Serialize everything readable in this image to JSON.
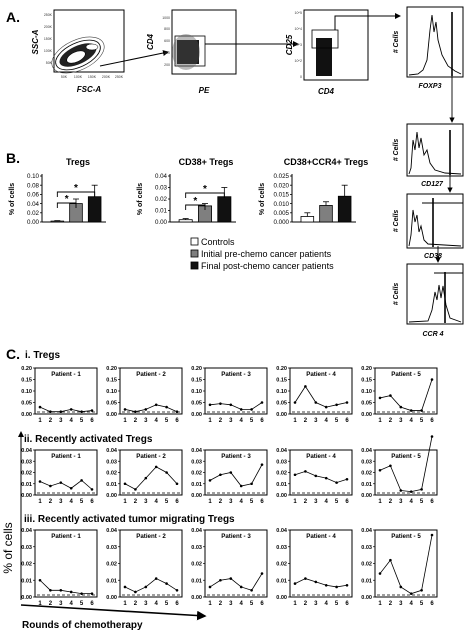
{
  "panel_letters": {
    "a": "A.",
    "b": "B.",
    "c": "C."
  },
  "flow": {
    "plot1": {
      "ylabel": "SSC-A",
      "xlabel": "FSC-A",
      "ticks": [
        "50K",
        "100K",
        "150K",
        "200K",
        "250K"
      ]
    },
    "plot2": {
      "ylabel": "CD4",
      "xlabel": "PE",
      "ticks": [
        "1000",
        "800",
        "600",
        "400",
        "200"
      ]
    },
    "plot3": {
      "ylabel": "CD25",
      "xlabel": "CD4",
      "ticks": [
        "10^5",
        "10^4",
        "10^3",
        "10^2",
        "0"
      ]
    },
    "hist": [
      {
        "ylabel": "# Cells",
        "xlabel": "FOXP3"
      },
      {
        "ylabel": "# Cells",
        "xlabel": "CD127"
      },
      {
        "ylabel": "# Cells",
        "xlabel": "CD38"
      },
      {
        "ylabel": "# Cells",
        "xlabel": "CCR 4"
      }
    ]
  },
  "legend": [
    {
      "label": "Controls",
      "color": "#ffffff"
    },
    {
      "label": "Initial pre-chemo cancer patients",
      "color": "#7f7f7f"
    },
    {
      "label": "Final post-chemo cancer patients",
      "color": "#111111"
    }
  ],
  "section_c": {
    "rows": [
      {
        "title": "i. Tregs"
      },
      {
        "title": "ii. Recently activated Tregs"
      },
      {
        "title": "iii. Recently activated tumor migrating Tregs"
      }
    ],
    "ylabel": "% of cells",
    "xlabel": "Rounds of chemotherapy"
  },
  "chart_data": [
    {
      "type": "bar",
      "title": "Tregs",
      "ylabel": "% of cells",
      "categories": [
        "Controls",
        "Initial pre-chemo cancer patients",
        "Final post-chemo cancer patients"
      ],
      "values": [
        0.002,
        0.04,
        0.055
      ],
      "errors": [
        0.001,
        0.01,
        0.025
      ],
      "ylim": [
        0,
        0.1
      ],
      "yticks": [
        "0.00",
        "0.02",
        "0.04",
        "0.06",
        "0.08",
        "0.10"
      ],
      "annotations": [
        "*",
        "*"
      ]
    },
    {
      "type": "bar",
      "title": "CD38+ Tregs",
      "ylabel": "% of cells",
      "categories": [
        "Controls",
        "Initial pre-chemo cancer patients",
        "Final post-chemo cancer patients"
      ],
      "values": [
        0.002,
        0.014,
        0.022
      ],
      "errors": [
        0.001,
        0.002,
        0.008
      ],
      "ylim": [
        0,
        0.04
      ],
      "yticks": [
        "0.00",
        "0.01",
        "0.02",
        "0.03",
        "0.04"
      ],
      "annotations": [
        "*",
        "*"
      ]
    },
    {
      "type": "bar",
      "title": "CD38+CCR4+ Tregs",
      "ylabel": "% of cells",
      "categories": [
        "Controls",
        "Initial pre-chemo cancer patients",
        "Final post-chemo cancer patients"
      ],
      "values": [
        0.003,
        0.009,
        0.014
      ],
      "errors": [
        0.002,
        0.002,
        0.006
      ],
      "ylim": [
        0,
        0.025
      ],
      "yticks": [
        "0.000",
        "0.005",
        "0.010",
        "0.015",
        "0.020",
        "0.025"
      ]
    },
    {
      "type": "line",
      "row_title": "i. Tregs",
      "x": [
        1,
        2,
        3,
        4,
        5,
        6
      ],
      "ylim": [
        0,
        0.2
      ],
      "yticks": [
        "0.00",
        "0.05",
        "0.10",
        "0.15",
        "0.20"
      ],
      "panels": [
        {
          "title": "Patient - 1",
          "values": [
            0.03,
            0.01,
            0.01,
            0.02,
            0.01,
            0.015
          ]
        },
        {
          "title": "Patient - 2",
          "values": [
            0.02,
            0.01,
            0.02,
            0.04,
            0.03,
            0.01
          ]
        },
        {
          "title": "Patient - 3",
          "values": [
            0.04,
            0.045,
            0.04,
            0.02,
            0.02,
            0.05
          ]
        },
        {
          "title": "Patient - 4",
          "values": [
            0.05,
            0.12,
            0.05,
            0.03,
            0.04,
            0.05
          ]
        },
        {
          "title": "Patient - 5",
          "values": [
            0.07,
            0.08,
            0.03,
            0.015,
            0.015,
            0.15
          ]
        }
      ]
    },
    {
      "type": "line",
      "row_title": "ii. Recently activated Tregs",
      "x": [
        1,
        2,
        3,
        4,
        5,
        6
      ],
      "ylim": [
        0,
        0.04
      ],
      "yticks": [
        "0.00",
        "0.01",
        "0.02",
        "0.03",
        "0.04"
      ],
      "panels": [
        {
          "title": "Patient - 1",
          "values": [
            0.012,
            0.008,
            0.011,
            0.006,
            0.013,
            0.005
          ]
        },
        {
          "title": "Patient - 2",
          "values": [
            0.01,
            0.005,
            0.015,
            0.025,
            0.02,
            0.01
          ]
        },
        {
          "title": "Patient - 3",
          "values": [
            0.013,
            0.018,
            0.02,
            0.008,
            0.01,
            0.027
          ]
        },
        {
          "title": "Patient - 4",
          "values": [
            0.018,
            0.021,
            0.017,
            0.015,
            0.011,
            0.014
          ]
        },
        {
          "title": "Patient - 5",
          "values": [
            0.022,
            0.026,
            0.004,
            0.003,
            0.005,
            0.052
          ]
        }
      ]
    },
    {
      "type": "line",
      "row_title": "iii. Recently activated tumor migrating Tregs",
      "x": [
        1,
        2,
        3,
        4,
        5,
        6
      ],
      "ylim": [
        0,
        0.04
      ],
      "yticks": [
        "0.00",
        "0.01",
        "0.02",
        "0.03",
        "0.04"
      ],
      "panels": [
        {
          "title": "Patient - 1",
          "values": [
            0.01,
            0.004,
            0.004,
            0.003,
            0.002,
            0.002
          ]
        },
        {
          "title": "Patient - 2",
          "values": [
            0.006,
            0.003,
            0.006,
            0.011,
            0.008,
            0.004
          ]
        },
        {
          "title": "Patient - 3",
          "values": [
            0.006,
            0.01,
            0.011,
            0.006,
            0.004,
            0.014
          ]
        },
        {
          "title": "Patient - 4",
          "values": [
            0.008,
            0.011,
            0.009,
            0.007,
            0.006,
            0.007
          ]
        },
        {
          "title": "Patient - 5",
          "values": [
            0.014,
            0.022,
            0.006,
            0.002,
            0.004,
            0.037
          ]
        }
      ]
    }
  ]
}
